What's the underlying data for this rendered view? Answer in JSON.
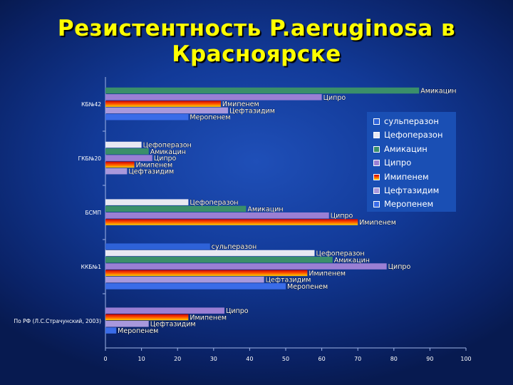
{
  "slide": {
    "title_line1": "Резистентность P.aeruginosa в",
    "title_line2": "Красноярске"
  },
  "colors": {
    "sulbactam": "#2e62d8",
    "cefoperazone": "#e8e8f2",
    "amikacin": "#3a8f6a",
    "cipro": "#9a7fd4",
    "imipenem_gradient": [
      "#cc0000",
      "#ff5500",
      "#ffd000"
    ],
    "ceftazidime": "#a898dc",
    "meropenem": "#3a6ce8",
    "axis_text": "#ffffff"
  },
  "chart_data": {
    "type": "bar",
    "orientation": "horizontal",
    "xlim": [
      0,
      100
    ],
    "x_ticks": [
      "0",
      "10",
      "20",
      "30",
      "40",
      "50",
      "60",
      "70",
      "80",
      "90",
      "100"
    ],
    "legend_position": "right",
    "legend": [
      "сульперазон",
      "Цефоперазон",
      "Амикацин",
      "Ципро",
      "Имипенем",
      "Цефтазидим",
      "Меропенем"
    ],
    "groups": [
      {
        "name": "КБ№42",
        "bars": [
          {
            "series": "Амикацин",
            "label": "Амикацин",
            "value": 87
          },
          {
            "series": "Ципро",
            "label": "Ципро",
            "value": 60
          },
          {
            "series": "Имипенем",
            "label": "Имипенем",
            "value": 32
          },
          {
            "series": "Цефтазидим",
            "label": "Цефтазидим",
            "value": 34
          },
          {
            "series": "Меропенем",
            "label": "Меропенем",
            "value": 23
          }
        ]
      },
      {
        "name": "ГКБ№20",
        "bars": [
          {
            "series": "Цефоперазон",
            "label": "Цефоперазон",
            "value": 10
          },
          {
            "series": "Амикацин",
            "label": "Амикацин",
            "value": 12
          },
          {
            "series": "Ципро",
            "label": "Ципро",
            "value": 13
          },
          {
            "series": "Имипенем",
            "label": "Имипенем",
            "value": 8
          },
          {
            "series": "Цефтазидим",
            "label": "Цефтазидим",
            "value": 6
          }
        ]
      },
      {
        "name": "БСМП",
        "bars": [
          {
            "series": "Цефоперазон",
            "label": "Цефоперазон",
            "value": 23
          },
          {
            "series": "Амикацин",
            "label": "Амикацин",
            "value": 39
          },
          {
            "series": "Ципро",
            "label": "Ципро",
            "value": 62
          },
          {
            "series": "Имипенем",
            "label": "Имипенем",
            "value": 70
          }
        ]
      },
      {
        "name": "ККБ№1",
        "bars": [
          {
            "series": "сульперазон",
            "label": "сульперазон",
            "value": 29
          },
          {
            "series": "Цефоперазон",
            "label": "Цефоперазон",
            "value": 58
          },
          {
            "series": "Амикацин",
            "label": "Амикацин",
            "value": 63
          },
          {
            "series": "Ципро",
            "label": "Ципро",
            "value": 78
          },
          {
            "series": "Имипенем",
            "label": "Имипенем",
            "value": 56
          },
          {
            "series": "Цефтазидим",
            "label": "Цефтазидим",
            "value": 44
          },
          {
            "series": "Меропенем",
            "label": "Меропенем",
            "value": 50
          }
        ]
      },
      {
        "name": "По РФ (Л.С.Страчунский, 2003)",
        "bars": [
          {
            "series": "Ципро",
            "label": "Ципро",
            "value": 33
          },
          {
            "series": "Имипенем",
            "label": "Имипенем",
            "value": 23
          },
          {
            "series": "Цефтазидим",
            "label": "Цефтазидим",
            "value": 12
          },
          {
            "series": "Меропенем",
            "label": "Меропенем",
            "value": 3
          }
        ]
      }
    ]
  }
}
